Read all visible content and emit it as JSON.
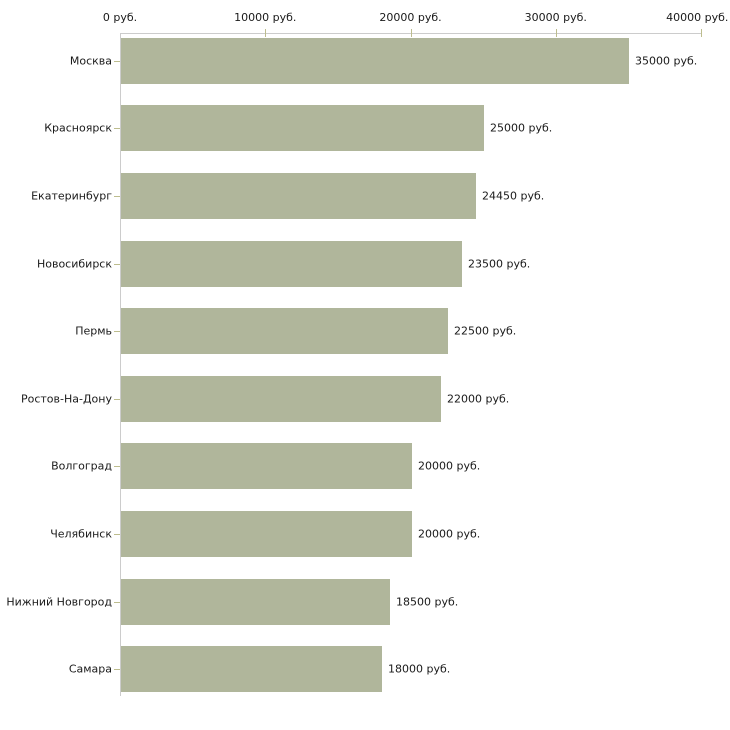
{
  "chart_data": {
    "type": "bar",
    "orientation": "horizontal",
    "title": "",
    "xlabel": "",
    "ylabel": "",
    "categories": [
      "Москва",
      "Красноярск",
      "Екатеринбург",
      "Новосибирск",
      "Пермь",
      "Ростов-На-Дону",
      "Волгоград",
      "Челябинск",
      "Нижний Новгород",
      "Самара"
    ],
    "values": [
      35000,
      25000,
      24450,
      23500,
      22500,
      22000,
      20000,
      20000,
      18500,
      18000
    ],
    "value_labels": [
      "35000 руб.",
      "25000 руб.",
      "24450 руб.",
      "23500 руб.",
      "22500 руб.",
      "22000 руб.",
      "20000 руб.",
      "20000 руб.",
      "18500 руб.",
      "18000 руб."
    ],
    "xlim": [
      0,
      40000
    ],
    "x_ticks": [
      0,
      10000,
      20000,
      30000,
      40000
    ],
    "x_tick_labels": [
      "0 руб.",
      "10000 руб.",
      "20000 руб.",
      "30000 руб.",
      "40000 руб."
    ],
    "grid": false,
    "legend": false,
    "axis_position": "top",
    "colors": {
      "bar": "#b0b69b",
      "axis_line": "#cccccc",
      "tick": "#bdbd8e",
      "text": "#1a1a1a",
      "background": "#ffffff"
    }
  }
}
